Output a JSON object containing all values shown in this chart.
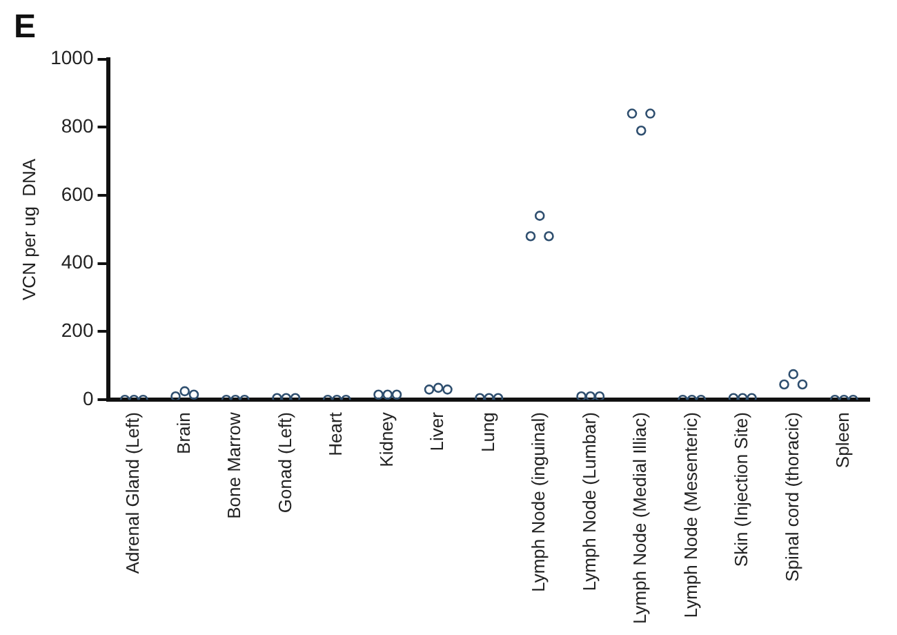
{
  "chart_data": {
    "type": "scatter",
    "title": "E",
    "ylabel": "VCN per ug  DNA",
    "categories": [
      "Adrenal Gland (Left)",
      "Brain",
      "Bone Marrow",
      "Gonad (Left)",
      "Heart",
      "Kidney",
      "Liver",
      "Lung",
      "Lymph Node (inguinal)",
      "Lymph Node (Lumbar)",
      "Lymph Node (Medial Illiac)",
      "Lymph Node (Mesenteric)",
      "Skin (Injection Site)",
      "Spinal cord (thoracic)",
      "Spleen"
    ],
    "series": [
      {
        "color": "#2f4f6f",
        "x": [
          "Adrenal Gland (Left)",
          "Adrenal Gland (Left)",
          "Adrenal Gland (Left)",
          "Brain",
          "Brain",
          "Brain",
          "Bone Marrow",
          "Bone Marrow",
          "Bone Marrow",
          "Gonad (Left)",
          "Gonad (Left)",
          "Gonad (Left)",
          "Heart",
          "Heart",
          "Heart",
          "Kidney",
          "Kidney",
          "Kidney",
          "Liver",
          "Liver",
          "Liver",
          "Lung",
          "Lung",
          "Lung",
          "Lymph Node (inguinal)",
          "Lymph Node (inguinal)",
          "Lymph Node (inguinal)",
          "Lymph Node (Lumbar)",
          "Lymph Node (Lumbar)",
          "Lymph Node (Lumbar)",
          "Lymph Node (Medial Illiac)",
          "Lymph Node (Medial Illiac)",
          "Lymph Node (Medial Illiac)",
          "Lymph Node (Mesenteric)",
          "Lymph Node (Mesenteric)",
          "Lymph Node (Mesenteric)",
          "Skin (Injection Site)",
          "Skin (Injection Site)",
          "Skin (Injection Site)",
          "Spinal cord (thoracic)",
          "Spinal cord (thoracic)",
          "Spinal cord (thoracic)",
          "Spleen",
          "Spleen",
          "Spleen"
        ],
        "values": [
          0,
          0,
          0,
          10,
          25,
          15,
          0,
          0,
          0,
          5,
          5,
          5,
          0,
          0,
          0,
          15,
          15,
          15,
          30,
          35,
          30,
          5,
          5,
          5,
          480,
          540,
          480,
          10,
          10,
          10,
          840,
          790,
          840,
          0,
          0,
          0,
          5,
          5,
          5,
          45,
          75,
          45,
          0,
          0,
          0
        ]
      }
    ],
    "ylim": [
      0,
      1000
    ],
    "yticks": [
      0,
      200,
      400,
      600,
      800,
      1000
    ],
    "grid": false,
    "legend": false,
    "marker": "circle"
  }
}
